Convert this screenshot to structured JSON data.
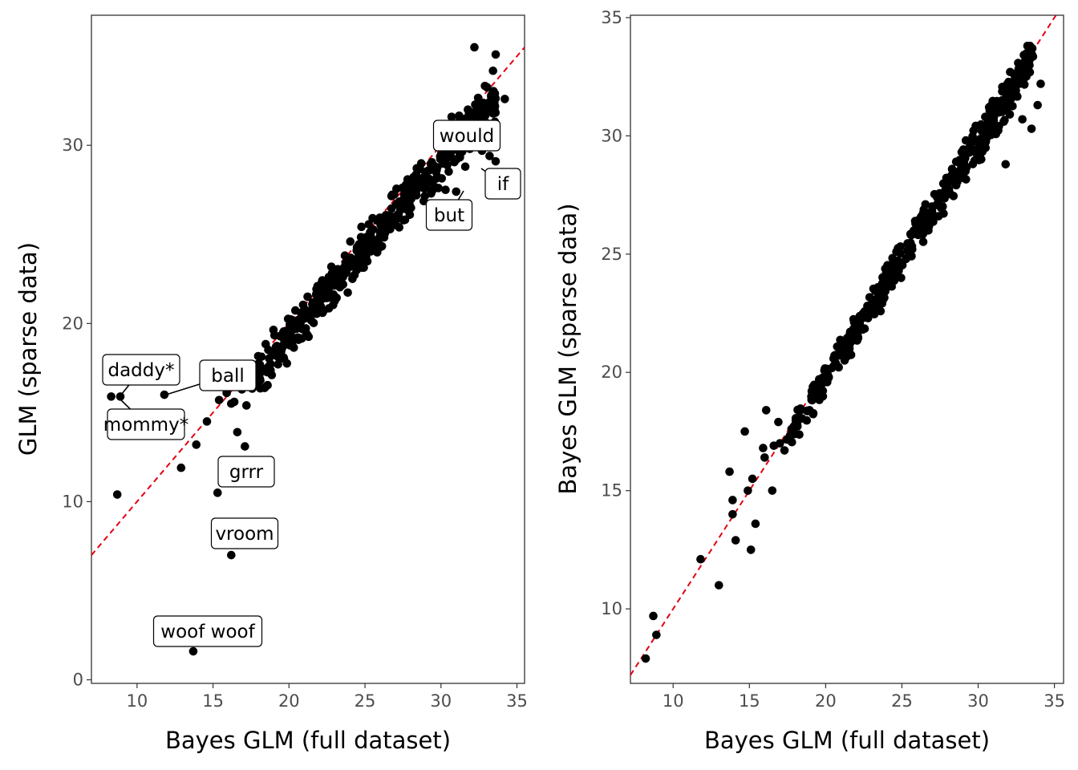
{
  "colors": {
    "points": "#000000",
    "reference_line": "#e3000f",
    "panel_border": "#333333",
    "tick_text": "#4d4d4d",
    "background": "#ffffff"
  },
  "chart_data": [
    {
      "type": "scatter",
      "xlabel": "Bayes GLM (full dataset)",
      "ylabel": "GLM (sparse data)",
      "xlim": [
        7,
        35.5
      ],
      "ylim": [
        -0.2,
        37.3
      ],
      "xticks": [
        10,
        15,
        20,
        25,
        30,
        35
      ],
      "yticks": [
        0,
        10,
        20,
        30
      ],
      "reference_line": {
        "style": "dashed",
        "color": "#e3000f",
        "slope": 1,
        "intercept": 0
      },
      "grid": false,
      "cloud": {
        "x_range": [
          17.4,
          33.6
        ],
        "band": [
          -2.2,
          0.7
        ],
        "n": 480,
        "seed": 1234
      },
      "points": [
        [
          8.3,
          15.9
        ],
        [
          8.9,
          15.9
        ],
        [
          8.7,
          10.4
        ],
        [
          11.8,
          16.0
        ],
        [
          13.7,
          1.6
        ],
        [
          12.9,
          11.9
        ],
        [
          13.9,
          13.2
        ],
        [
          14.6,
          14.5
        ],
        [
          15.3,
          10.5
        ],
        [
          15.4,
          15.7
        ],
        [
          15.9,
          16.1
        ],
        [
          16.4,
          15.6
        ],
        [
          16.2,
          15.5
        ],
        [
          16.2,
          7.0
        ],
        [
          16.6,
          13.9
        ],
        [
          16.9,
          16.3
        ],
        [
          17.1,
          13.1
        ],
        [
          17.2,
          15.4
        ],
        [
          17.5,
          16.7
        ],
        [
          32.2,
          35.5
        ],
        [
          33.6,
          35.1
        ],
        [
          34.2,
          32.6
        ],
        [
          30.7,
          31.6
        ],
        [
          31.4,
          30.5
        ],
        [
          32.7,
          29.7
        ],
        [
          33.2,
          29.4
        ],
        [
          33.6,
          29.1
        ],
        [
          31.6,
          28.8
        ],
        [
          31.0,
          27.4
        ],
        [
          30.3,
          27.5
        ],
        [
          31.9,
          29.8
        ],
        [
          30.2,
          30.2
        ]
      ],
      "labels": [
        {
          "text": "would",
          "x": 30.7,
          "y": 30.3
        },
        {
          "text": "if",
          "x": 34.1,
          "y": 27.5
        },
        {
          "text": "but",
          "x": 30.6,
          "y": 25.8
        },
        {
          "text": "daddy*",
          "x": 8.8,
          "y": 17.1
        },
        {
          "text": "ball",
          "x": 15.6,
          "y": 16.8
        },
        {
          "text": "mommy*",
          "x": 9.6,
          "y": 14.4
        },
        {
          "text": "grrr",
          "x": 17.4,
          "y": 11.6
        },
        {
          "text": "vroom",
          "x": 17.2,
          "y": 8.3
        },
        {
          "text": "woof woof",
          "x": 14.6,
          "y": 2.8
        }
      ]
    },
    {
      "type": "scatter",
      "xlabel": "Bayes GLM (full dataset)",
      "ylabel": "Bayes GLM (sparse data)",
      "xlim": [
        7.2,
        35.6
      ],
      "ylim": [
        6.85,
        35.1
      ],
      "xticks": [
        10,
        15,
        20,
        25,
        30,
        35
      ],
      "yticks": [
        10,
        15,
        20,
        25,
        30,
        35
      ],
      "reference_line": {
        "style": "dashed",
        "color": "#e3000f",
        "slope": 1,
        "intercept": 0
      },
      "grid": false,
      "cloud": {
        "x_range": [
          17.4,
          33.6
        ],
        "band": [
          -1.1,
          0.6
        ],
        "n": 480,
        "seed": 4321
      },
      "points": [
        [
          8.2,
          7.9
        ],
        [
          8.7,
          9.7
        ],
        [
          8.9,
          8.9
        ],
        [
          11.8,
          12.1
        ],
        [
          13.0,
          11.0
        ],
        [
          13.7,
          15.8
        ],
        [
          13.9,
          14.0
        ],
        [
          13.9,
          14.6
        ],
        [
          14.1,
          12.9
        ],
        [
          14.7,
          17.5
        ],
        [
          14.9,
          15.0
        ],
        [
          15.1,
          12.5
        ],
        [
          15.2,
          15.5
        ],
        [
          15.4,
          13.6
        ],
        [
          15.9,
          16.8
        ],
        [
          16.0,
          16.4
        ],
        [
          16.1,
          18.4
        ],
        [
          16.5,
          15.0
        ],
        [
          16.6,
          16.9
        ],
        [
          16.9,
          17.9
        ],
        [
          17.0,
          17.0
        ],
        [
          17.3,
          16.7
        ],
        [
          32.1,
          32.7
        ],
        [
          33.4,
          33.8
        ],
        [
          34.1,
          32.2
        ],
        [
          33.9,
          31.3
        ],
        [
          33.5,
          30.3
        ],
        [
          32.9,
          30.7
        ],
        [
          32.4,
          32.2
        ],
        [
          31.8,
          28.8
        ]
      ]
    }
  ]
}
